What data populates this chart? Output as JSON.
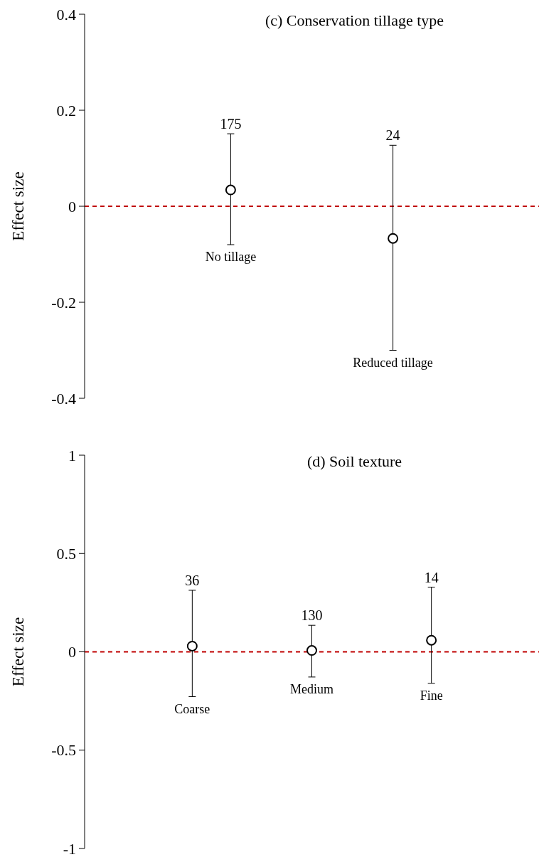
{
  "chart_data": [
    {
      "type": "scatter",
      "title": "(c) Conservation tillage type",
      "ylabel": "Effect size",
      "categories": [
        "No tillage",
        "Reduced tillage"
      ],
      "values": [
        0.034,
        -0.067
      ],
      "errors": [
        [
          -0.08,
          0.151
        ],
        [
          -0.3,
          0.127
        ]
      ],
      "color": "#000000",
      "marker": "circle",
      "ylim": [
        -0.4,
        0.4
      ],
      "yticks": [
        -0.4,
        -0.2,
        0,
        0.2,
        0.4
      ],
      "ref_lines": [
        {
          "axis": "y",
          "value": 0,
          "color": "#c00000",
          "line_style": "dashed"
        }
      ],
      "annotations": [
        "175",
        "24"
      ]
    },
    {
      "type": "scatter",
      "title": "(d) Soil texture",
      "ylabel": "Effect size",
      "categories": [
        "Coarse",
        "Medium",
        "Fine"
      ],
      "values": [
        0.029,
        0.007,
        0.059
      ],
      "errors": [
        [
          -0.228,
          0.313
        ],
        [
          -0.128,
          0.135
        ],
        [
          -0.16,
          0.329
        ]
      ],
      "color": "#000000",
      "marker": "circle",
      "ylim": [
        -1,
        1
      ],
      "yticks": [
        -1,
        -0.5,
        0,
        0.5,
        1
      ],
      "ref_lines": [
        {
          "axis": "y",
          "value": 0,
          "color": "#c00000",
          "line_style": "dashed"
        }
      ],
      "annotations": [
        "36",
        "130",
        "14"
      ]
    }
  ]
}
